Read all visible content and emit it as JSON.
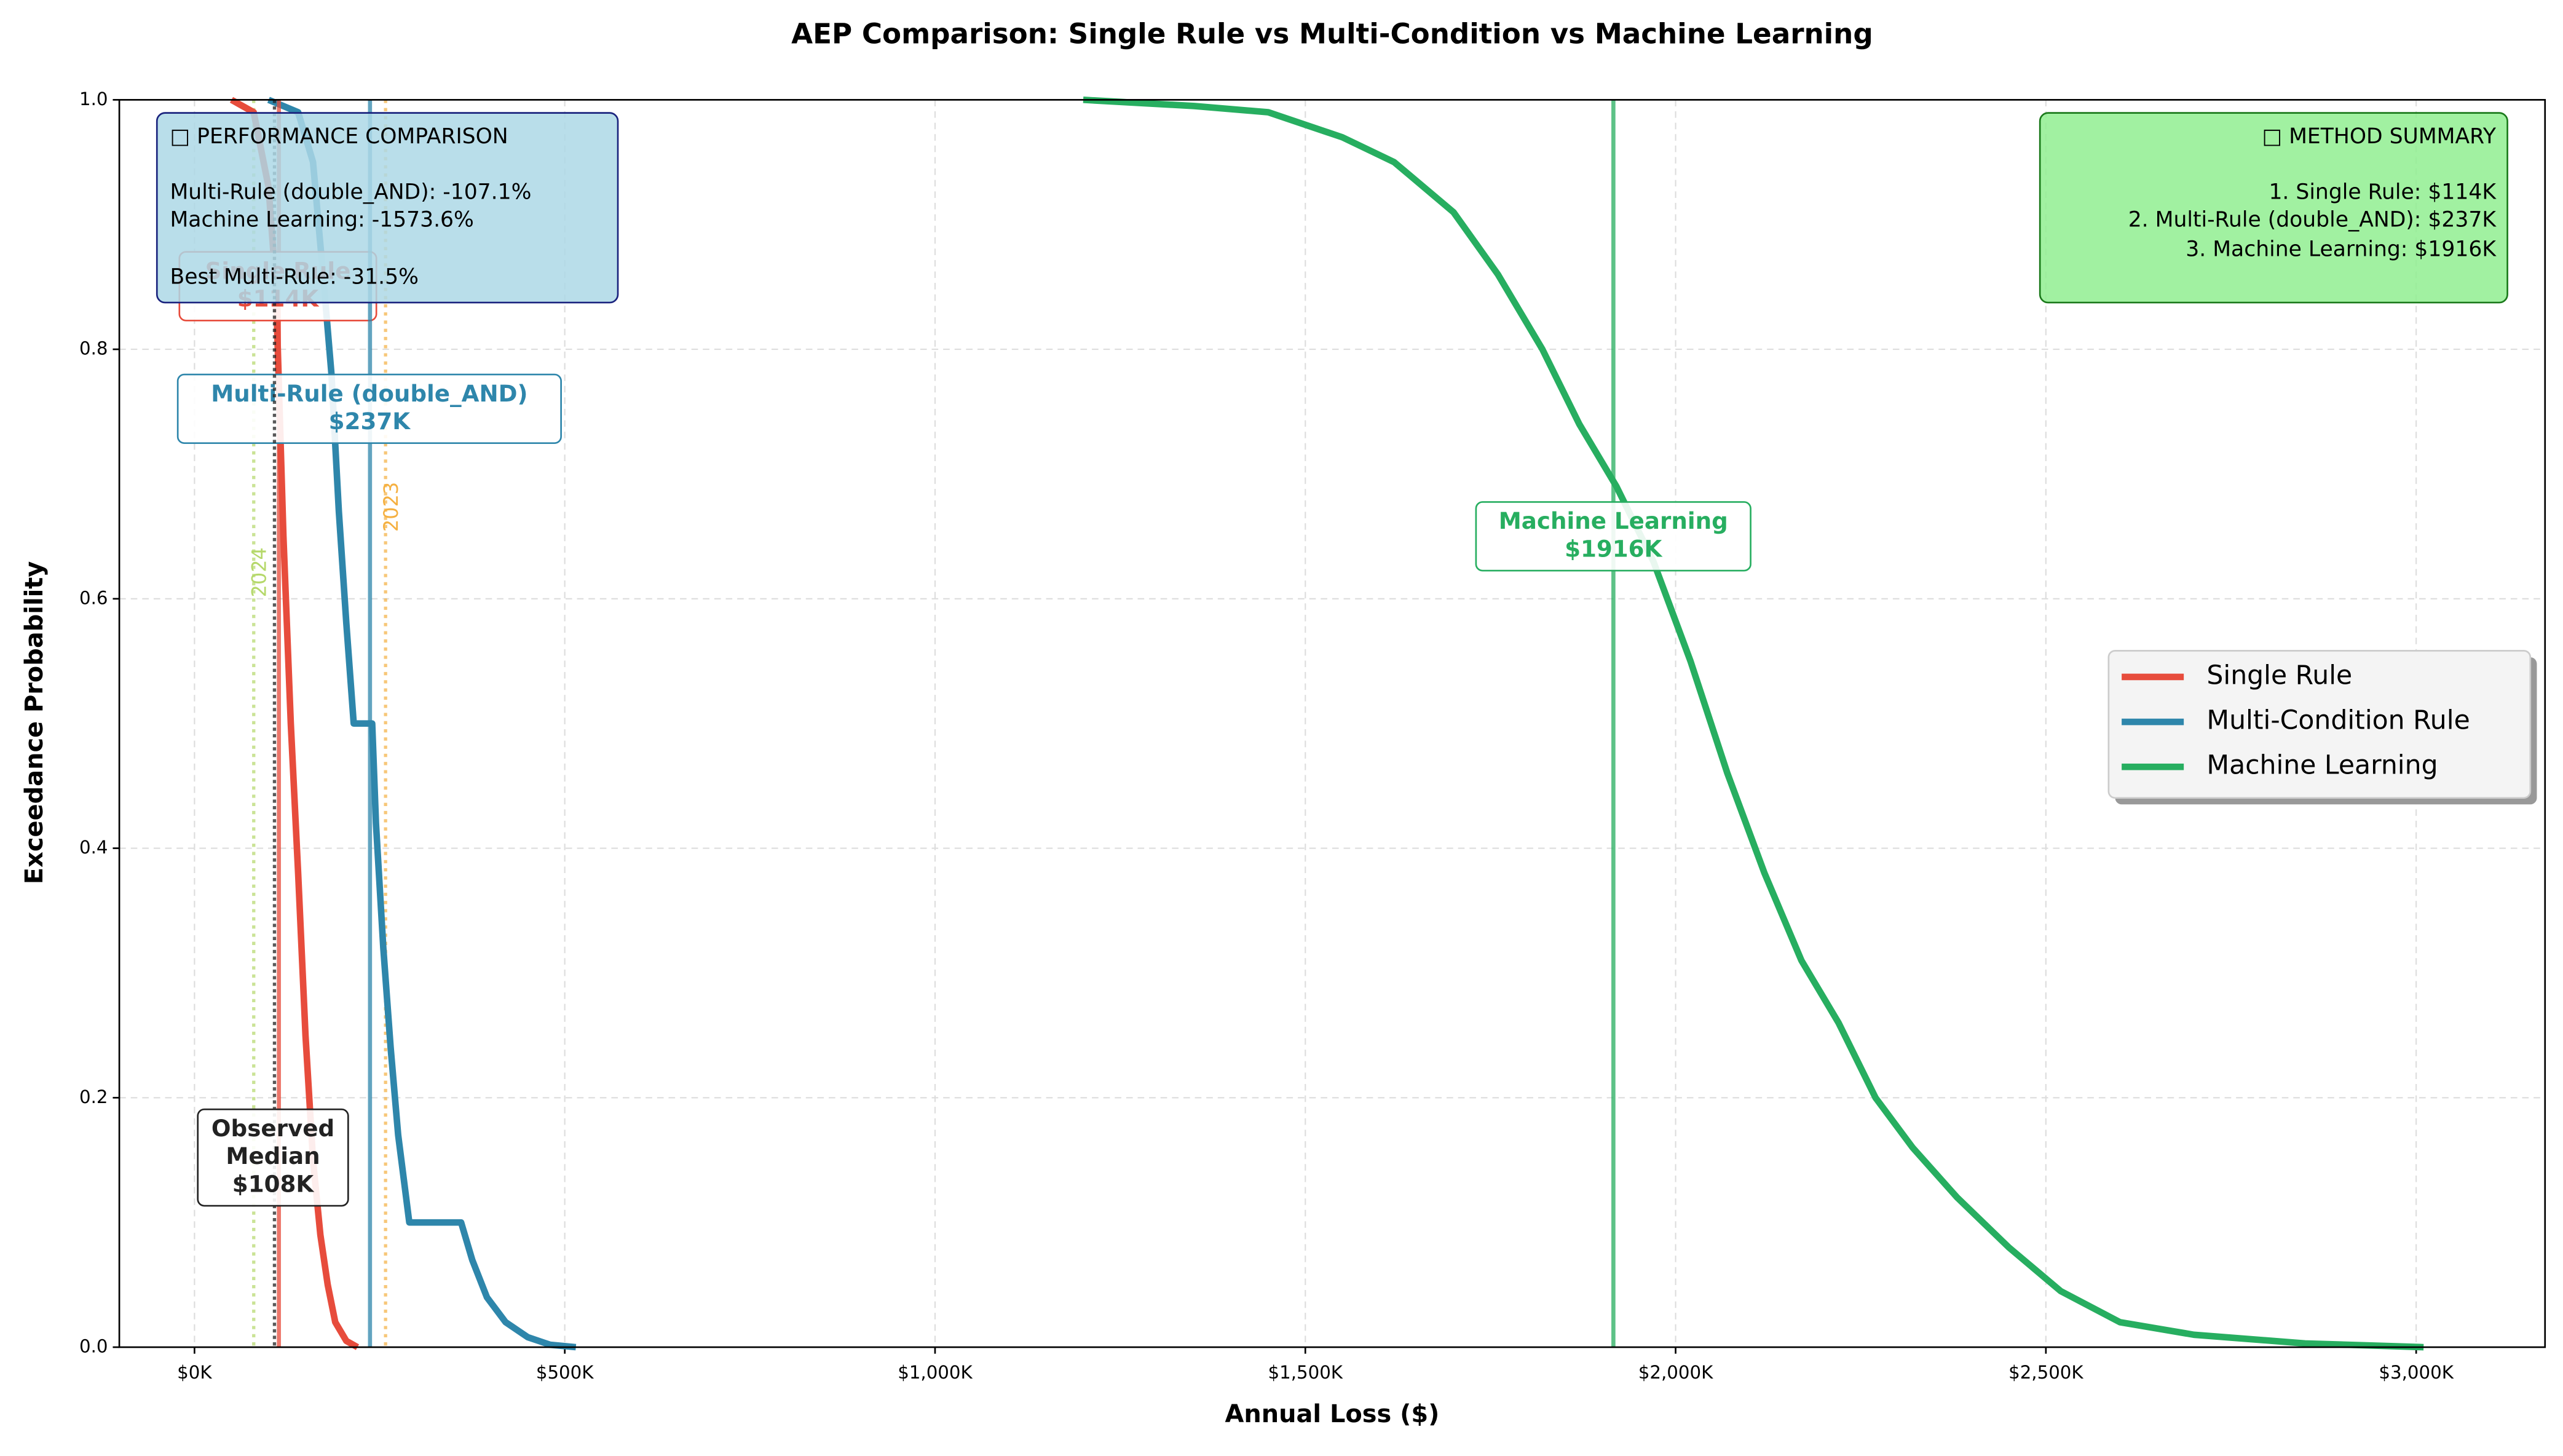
{
  "chart_data": {
    "type": "line",
    "title": "AEP Comparison: Single Rule vs Multi-Condition vs Machine Learning",
    "x_label": "Annual Loss ($)",
    "y_label": "Exceedance Probability",
    "xlim": [
      -101500,
      3174000
    ],
    "ylim": [
      0,
      1
    ],
    "xticks": [
      {
        "value": 0,
        "label": "$0K"
      },
      {
        "value": 500000,
        "label": "$500K"
      },
      {
        "value": 1000000,
        "label": "$1,000K"
      },
      {
        "value": 1500000,
        "label": "$1,500K"
      },
      {
        "value": 2000000,
        "label": "$2,000K"
      },
      {
        "value": 2500000,
        "label": "$2,500K"
      },
      {
        "value": 3000000,
        "label": "$3,000K"
      }
    ],
    "yticks": [
      {
        "value": 0,
        "label": "0.0"
      },
      {
        "value": 0.2,
        "label": "0.2"
      },
      {
        "value": 0.4,
        "label": "0.4"
      },
      {
        "value": 0.6,
        "label": "0.6"
      },
      {
        "value": 0.8,
        "label": "0.8"
      },
      {
        "value": 1,
        "label": "1.0"
      }
    ],
    "grid": true,
    "legend": "right",
    "series": [
      {
        "name": "Single Rule",
        "color": "#e74c3c",
        "x": [
          50000,
          80000,
          100000,
          110000,
          115000,
          120000,
          130000,
          140000,
          150000,
          160000,
          170000,
          180000,
          190000,
          205000,
          220000
        ],
        "values": [
          1.0,
          0.99,
          0.93,
          0.85,
          0.75,
          0.65,
          0.5,
          0.38,
          0.25,
          0.15,
          0.09,
          0.05,
          0.02,
          0.005,
          0
        ]
      },
      {
        "name": "Multi-Condition Rule",
        "color": "#2e86ab",
        "x": [
          100000,
          140000,
          160000,
          175000,
          185000,
          195000,
          205000,
          215000,
          240000,
          245000,
          255000,
          265000,
          275000,
          290000,
          360000,
          375000,
          395000,
          420000,
          450000,
          480000,
          515000
        ],
        "values": [
          1.0,
          0.99,
          0.95,
          0.85,
          0.78,
          0.67,
          0.58,
          0.5,
          0.5,
          0.42,
          0.32,
          0.24,
          0.17,
          0.1,
          0.1,
          0.07,
          0.04,
          0.02,
          0.008,
          0.002,
          0
        ]
      },
      {
        "name": "Machine Learning",
        "color": "#27ae60",
        "x": [
          1200000,
          1350000,
          1450000,
          1550000,
          1620000,
          1700000,
          1760000,
          1820000,
          1870000,
          1920000,
          1970000,
          2020000,
          2070000,
          2120000,
          2170000,
          2220000,
          2270000,
          2320000,
          2380000,
          2450000,
          2520000,
          2600000,
          2700000,
          2850000,
          3010000
        ],
        "values": [
          1.0,
          0.995,
          0.99,
          0.97,
          0.95,
          0.91,
          0.86,
          0.8,
          0.74,
          0.69,
          0.63,
          0.55,
          0.46,
          0.38,
          0.31,
          0.26,
          0.2,
          0.16,
          0.12,
          0.08,
          0.045,
          0.02,
          0.01,
          0.003,
          0
        ]
      }
    ],
    "markers": [
      {
        "lines": [
          "Single Rule",
          "$114K"
        ],
        "value": 114000,
        "color": "#e74c3c"
      },
      {
        "lines": [
          "Multi-Rule (double_AND)",
          "$237K"
        ],
        "value": 237000,
        "color": "#2e86ab"
      },
      {
        "lines": [
          "Machine Learning",
          "$1916K"
        ],
        "value": 1916000,
        "color": "#27ae60"
      },
      {
        "lines": [
          "Observed",
          "Median",
          "$108K"
        ],
        "value": 108000,
        "color": "#222222"
      }
    ],
    "year_lines": [
      {
        "label": "2024",
        "value": 80000,
        "color": "#b5d86a"
      },
      {
        "label": "2023",
        "value": 258000,
        "color": "#f5b041"
      }
    ],
    "performance_box": [
      "□ PERFORMANCE COMPARISON",
      "Multi-Rule (double_AND): -107.1%",
      "Machine Learning: -1573.6%",
      "Best Multi-Rule: -31.5%"
    ],
    "summary_box": [
      "□ METHOD SUMMARY",
      "1. Single Rule: $114K",
      "2. Multi-Rule (double_AND): $237K",
      "3. Machine Learning: $1916K"
    ]
  }
}
